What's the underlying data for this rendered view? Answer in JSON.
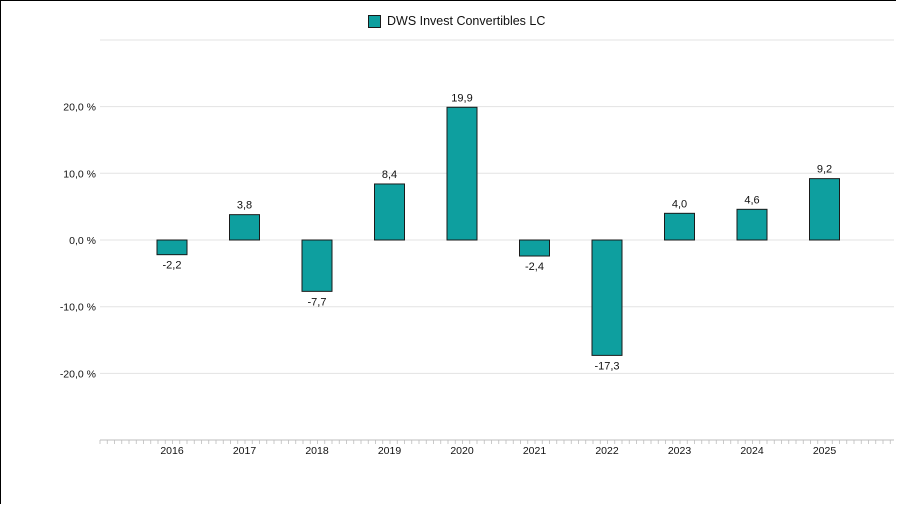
{
  "chart_data": {
    "type": "bar",
    "title": "",
    "xlabel": "",
    "ylabel": "",
    "categories": [
      "2016",
      "2017",
      "2018",
      "2019",
      "2020",
      "2021",
      "2022",
      "2023",
      "2024",
      "2025"
    ],
    "series": [
      {
        "name": "DWS Invest Convertibles LC",
        "values": [
          -2.2,
          3.8,
          -7.7,
          8.4,
          19.9,
          -2.4,
          -17.3,
          4.0,
          4.6,
          9.2
        ],
        "labels": [
          "-2,2",
          "3,8",
          "-7,7",
          "8,4",
          "19,9",
          "-2,4",
          "-17,3",
          "4,0",
          "4,6",
          "9,2"
        ]
      }
    ],
    "yticks": [
      20,
      10,
      0,
      -10,
      -20
    ],
    "ytick_labels": [
      "20,0 %",
      "10,0 %",
      "0,0 %",
      "-10,0 %",
      "-20,0 %"
    ],
    "ylim": [
      -30,
      30
    ],
    "grid": true,
    "legend": "top-center",
    "colors": {
      "bar": "#0e9f9f",
      "bar_edge": "#1a1a1a",
      "grid": "#e3e3e3",
      "axis": "#bdbdbd"
    }
  }
}
